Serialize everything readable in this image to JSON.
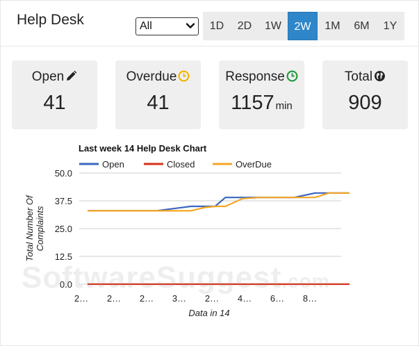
{
  "header": {
    "title": "Help Desk",
    "filter": {
      "selected": "All"
    },
    "ranges": [
      "1D",
      "2D",
      "1W",
      "2W",
      "1M",
      "6M",
      "1Y"
    ],
    "active_range": "2W"
  },
  "cards": [
    {
      "label": "Open",
      "value": "41",
      "icon": "pencil-icon"
    },
    {
      "label": "Overdue",
      "value": "41",
      "icon": "clock-icon",
      "icon_color": "#f0b400"
    },
    {
      "label": "Response",
      "value": "1157",
      "unit": "min",
      "icon": "clock-icon",
      "icon_color": "#1e9a3a"
    },
    {
      "label": "Total",
      "value": "909",
      "icon": "globe-icon"
    }
  ],
  "chart_data": {
    "type": "line",
    "title": "Last week 14 Help Desk Chart",
    "xlabel": "Data in 14",
    "ylabel": "Total Number Of Complaints",
    "ylim": [
      0,
      50
    ],
    "yticks": [
      "0.0",
      "12.5",
      "25.0",
      "37.5",
      "50.0"
    ],
    "categories": [
      "2…",
      "2…",
      "2…",
      "3…",
      "2…",
      "4…",
      "6…",
      "8…"
    ],
    "legend_position": "top",
    "grid": true,
    "series": [
      {
        "name": "Open",
        "color": "#3a65c0",
        "x": [
          0,
          1,
          2,
          3,
          3.4,
          3.7,
          4,
          4.5,
          5,
          6,
          6.6,
          7,
          7.6
        ],
        "values": [
          33,
          33,
          33,
          35,
          35,
          35,
          39,
          39,
          39,
          39,
          41,
          41,
          41
        ]
      },
      {
        "name": "Closed",
        "color": "#d43218",
        "x": [
          0,
          7.6
        ],
        "values": [
          0,
          0
        ]
      },
      {
        "name": "OverDue",
        "color": "#f5a623",
        "x": [
          0,
          1,
          2,
          3,
          3.4,
          3.7,
          4,
          4.5,
          5,
          6,
          6.6,
          7,
          7.6
        ],
        "values": [
          33,
          33,
          33,
          33,
          34.5,
          35,
          35,
          38.5,
          39,
          39,
          39,
          41,
          41
        ]
      }
    ]
  },
  "watermark": {
    "main": "SoftwareSuggest",
    "suffix": ".com"
  }
}
